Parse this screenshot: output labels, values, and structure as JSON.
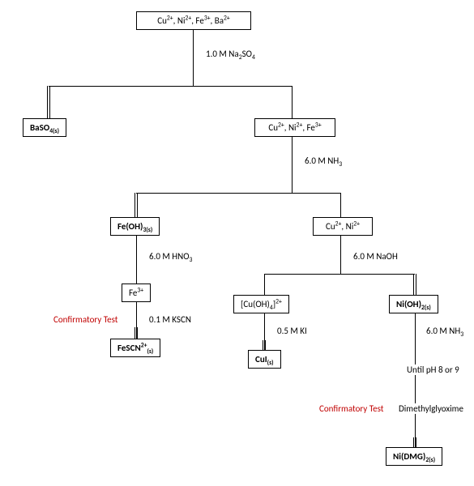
{
  "type": "flowchart",
  "background_color": "#ffffff",
  "line_color": "#000000",
  "text_color": "#000000",
  "confirmatory_color": "#c00000",
  "font_family": "Calibri",
  "font_size_pt": 8,
  "nodes": {
    "root": "Cu²⁺, Ni²⁺, Fe³⁺, Ba²⁺",
    "baso4": "BaSO₄(s)",
    "cunife": "Cu²⁺, Ni²⁺, Fe³⁺",
    "feoh3": "Fe(OH)₃(s)",
    "cuni": "Cu²⁺, Ni²⁺",
    "fe3": "Fe³⁺",
    "fescn": "FeSCN²⁺(s)",
    "cuoh4": "[Cu(OH)₄]²⁺",
    "nioh2": "Ni(OH)₂(s)",
    "cui": "CuI(s)",
    "nidmg": "Ni(DMG)₂(s)"
  },
  "reagents": {
    "na2so4": "1.0 M Na₂SO₄",
    "nh3_6_a": "6.0 M NH₃",
    "hno3": "6.0 M HNO₃",
    "naoh": "6.0 M NaOH",
    "kscn": "0.1 M KSCN",
    "ki": "0.5 M KI",
    "nh3_6_b": "6.0 M NH₃",
    "until_ph": "Until pH 8 or 9",
    "dmg": "Dimethylglyoxime"
  },
  "confirmatory": "Confirmatory Test"
}
